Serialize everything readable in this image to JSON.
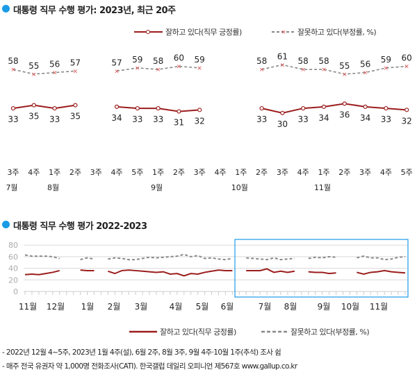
{
  "colors": {
    "positive": "#9b1c1c",
    "negative": "#888888",
    "accent": "#1a9be6",
    "grid": "#d8d8d8"
  },
  "chart_data": [
    {
      "type": "line",
      "title": "대통령 직무 수행 평가: 2023년, 최근 20주",
      "legend": [
        "잘하고 있다(직무 긍정률)",
        "잘못하고 있다(부정률, %)"
      ],
      "legend_position": "top-right",
      "categories": [
        "3주",
        "4주",
        "1주",
        "2주",
        "3주",
        "4주",
        "5주",
        "1주",
        "2주",
        "3주",
        "4주",
        "1주",
        "2주",
        "3주",
        "4주",
        "1주",
        "2주",
        "3주",
        "4주",
        "5주"
      ],
      "months": [
        {
          "label": "7월",
          "index": 0
        },
        {
          "label": "8월",
          "index": 2
        },
        {
          "label": "9월",
          "index": 7
        },
        {
          "label": "10월",
          "index": 11
        },
        {
          "label": "11월",
          "index": 15
        }
      ],
      "series": [
        {
          "name": "잘하고 있다(직무 긍정률)",
          "values": [
            33,
            35,
            33,
            35,
            null,
            34,
            33,
            33,
            31,
            32,
            null,
            null,
            33,
            30,
            33,
            34,
            36,
            34,
            33,
            32
          ]
        },
        {
          "name": "잘못하고 있다(부정률, %)",
          "values": [
            58,
            55,
            56,
            57,
            null,
            57,
            59,
            58,
            60,
            59,
            null,
            null,
            58,
            61,
            58,
            58,
            55,
            56,
            59,
            60
          ]
        }
      ]
    },
    {
      "type": "line",
      "title": "대통령 직무 수행 평가 2022-2023",
      "ylim": [
        0,
        80
      ],
      "yticks": [
        "0",
        "20",
        "40",
        "60",
        "80"
      ],
      "month_labels": [
        "11월",
        "12월",
        "1월",
        "2월",
        "3월",
        "4월",
        "5월",
        "6월",
        "7월",
        "8월",
        "9월",
        "10월",
        "11월"
      ],
      "legend": [
        "잘하고 있다(직무 긍정률)",
        "잘못하고 있다(부정률, %)"
      ],
      "legend_position": "bottom",
      "highlight": "recent 20 weeks",
      "series": [
        {
          "name": "잘하고 있다(직무 긍정률)",
          "values": [
            29,
            30,
            29,
            31,
            33,
            36,
            null,
            null,
            37,
            36,
            36,
            null,
            35,
            31,
            36,
            37,
            36,
            35,
            34,
            33,
            34,
            30,
            31,
            27,
            31,
            30,
            33,
            35,
            37,
            36,
            36,
            null,
            36,
            36,
            36,
            39,
            33,
            35,
            33,
            35,
            null,
            34,
            33,
            33,
            31,
            32,
            null,
            null,
            33,
            30,
            33,
            34,
            36,
            34,
            33,
            32
          ]
        },
        {
          "name": "잘못하고 있다(부정률, %)",
          "values": [
            63,
            61,
            61,
            61,
            60,
            57,
            null,
            null,
            55,
            58,
            56,
            null,
            56,
            58,
            57,
            55,
            55,
            57,
            59,
            58,
            59,
            60,
            61,
            64,
            60,
            62,
            57,
            58,
            56,
            55,
            57,
            null,
            58,
            57,
            56,
            55,
            58,
            55,
            56,
            57,
            null,
            57,
            59,
            58,
            60,
            59,
            null,
            null,
            58,
            61,
            58,
            58,
            55,
            56,
            59,
            60
          ]
        }
      ]
    }
  ],
  "footnotes": [
    "- 2022년 12월 4~5주, 2023년 1월 4주(설), 6월 2주, 8월 3주, 9월 4주·10월 1주(추석) 조사 쉼",
    "- 매주 전국 유권자 약 1,000명 전화조사(CATI). 한국갤럽 데일리 오피니언 제567호 www.gallup.co.kr"
  ]
}
